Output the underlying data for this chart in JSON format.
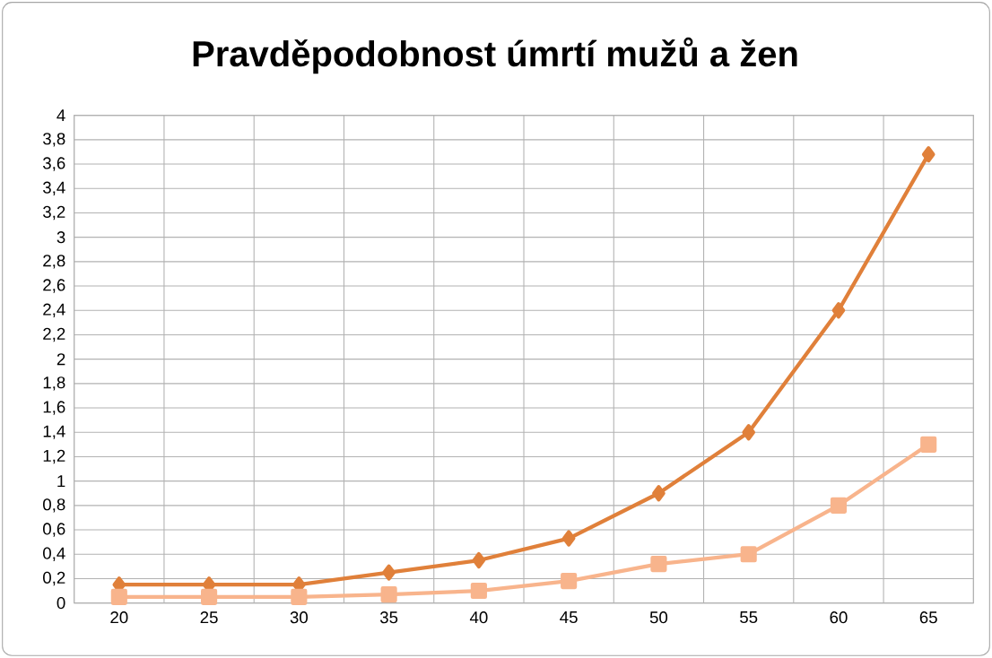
{
  "chart_data": {
    "type": "line",
    "title": "Pravděpodobnost úmrtí mužů a žen",
    "categories": [
      "20",
      "25",
      "30",
      "35",
      "40",
      "45",
      "50",
      "55",
      "60",
      "65"
    ],
    "series": [
      {
        "color": "#e0803a",
        "marker": "diamond",
        "values": [
          0.15,
          0.15,
          0.15,
          0.25,
          0.35,
          0.53,
          0.9,
          1.4,
          2.4,
          3.68
        ]
      },
      {
        "color": "#f8b48c",
        "marker": "square",
        "values": [
          0.05,
          0.05,
          0.05,
          0.07,
          0.1,
          0.18,
          0.32,
          0.4,
          0.8,
          1.3
        ]
      }
    ],
    "ylim": [
      0,
      4
    ],
    "yticks": [
      0,
      {
        "value": 0.2,
        "label": "0,2"
      },
      {
        "value": 0.4,
        "label": "0,4"
      },
      {
        "value": 0.6,
        "label": "0,6"
      },
      {
        "value": 0.8,
        "label": "0,8"
      },
      1,
      {
        "value": 1.2,
        "label": "1,2"
      },
      {
        "value": 1.4,
        "label": "1,4"
      },
      {
        "value": 1.6,
        "label": "1,6"
      },
      {
        "value": 1.8,
        "label": "1,8"
      },
      2,
      {
        "value": 2.2,
        "label": "2,2"
      },
      {
        "value": 2.4,
        "label": "2,4"
      },
      {
        "value": 2.6,
        "label": "2,6"
      },
      {
        "value": 2.8,
        "label": "2,8"
      },
      3,
      {
        "value": 3.2,
        "label": "3,2"
      },
      {
        "value": 3.4,
        "label": "3,4"
      },
      {
        "value": 3.6,
        "label": "3,6"
      },
      {
        "value": 3.8,
        "label": "3,8"
      },
      4
    ],
    "grid": true,
    "line_style": "solid"
  }
}
